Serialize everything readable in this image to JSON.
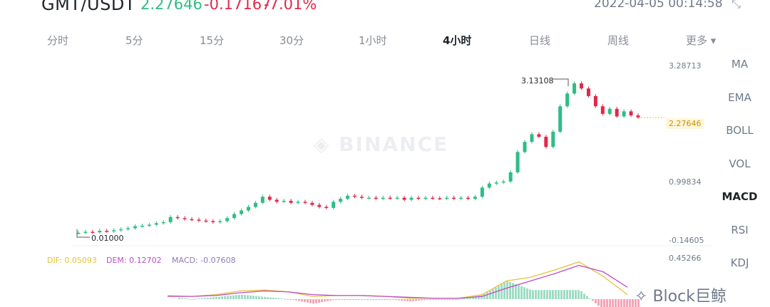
{
  "header": {
    "symbol": "GMT/USDT",
    "last_price": "2.27646",
    "change": "-0.17167",
    "change_pct": "-7.01%",
    "datetime": "2022-04-05 00:14:58",
    "shrink_icon": "collapse-arrows-icon"
  },
  "intervals": [
    {
      "label": "分时"
    },
    {
      "label": "5分"
    },
    {
      "label": "15分"
    },
    {
      "label": "30分"
    },
    {
      "label": "1小时"
    },
    {
      "label": "4小时",
      "active": true
    },
    {
      "label": "日线"
    },
    {
      "label": "周线"
    },
    {
      "label": "更多 ▾"
    }
  ],
  "indicators": [
    {
      "label": "MA"
    },
    {
      "label": "EMA"
    },
    {
      "label": "BOLL"
    },
    {
      "label": "VOL"
    },
    {
      "label": "MACD",
      "active": true
    },
    {
      "label": "RSI"
    },
    {
      "label": "KDJ"
    }
  ],
  "watermark": "BINANCE",
  "brand": "Block巨鲸",
  "colors": {
    "up": "#2ebd85",
    "down": "#e0294a",
    "dif": "#e8c13c",
    "dem": "#c04bc8",
    "macd": "#8e7bb5"
  },
  "chart_data": [
    {
      "type": "candlestick",
      "title": "4小时",
      "y_ticks": [
        "3.28713",
        "0.99834",
        "-0.14605"
      ],
      "ylim": [
        -0.14605,
        3.28713
      ],
      "high_label": "3.13108",
      "low_label": "0.01000",
      "last_label": "2.27646",
      "closes": [
        0.01,
        0.03,
        0.02,
        0.05,
        0.04,
        0.06,
        0.08,
        0.1,
        0.14,
        0.15,
        0.17,
        0.2,
        0.22,
        0.32,
        0.3,
        0.28,
        0.27,
        0.25,
        0.24,
        0.22,
        0.24,
        0.3,
        0.38,
        0.45,
        0.52,
        0.6,
        0.72,
        0.66,
        0.62,
        0.64,
        0.6,
        0.62,
        0.6,
        0.56,
        0.52,
        0.5,
        0.62,
        0.68,
        0.74,
        0.72,
        0.7,
        0.7,
        0.68,
        0.7,
        0.69,
        0.7,
        0.66,
        0.7,
        0.68,
        0.7,
        0.69,
        0.68,
        0.7,
        0.68,
        0.7,
        0.68,
        0.72,
        0.9,
        0.98,
        1.0,
        1.02,
        1.2,
        1.6,
        1.8,
        1.95,
        1.9,
        1.7,
        2.0,
        2.5,
        2.75,
        2.95,
        2.85,
        2.7,
        2.5,
        2.35,
        2.45,
        2.3,
        2.4,
        2.32,
        2.28
      ]
    },
    {
      "type": "line",
      "title": "MACD",
      "y_tick": "0.45266",
      "legend": {
        "dif": "DIF: 0.05093",
        "dem": "DEM: 0.12702",
        "macd": "MACD: -0.07608"
      },
      "dif": [
        0.04,
        0.03,
        0.05,
        0.09,
        0.1,
        0.08,
        0.03,
        0.04,
        0.04,
        0.03,
        0.01,
        0.01,
        0.01,
        0.05,
        0.2,
        0.24,
        0.32,
        0.41,
        0.25,
        0.05
      ],
      "dem": [
        0.03,
        0.03,
        0.04,
        0.07,
        0.09,
        0.08,
        0.05,
        0.04,
        0.04,
        0.03,
        0.02,
        0.01,
        0.01,
        0.03,
        0.12,
        0.2,
        0.28,
        0.37,
        0.3,
        0.13
      ]
    }
  ]
}
